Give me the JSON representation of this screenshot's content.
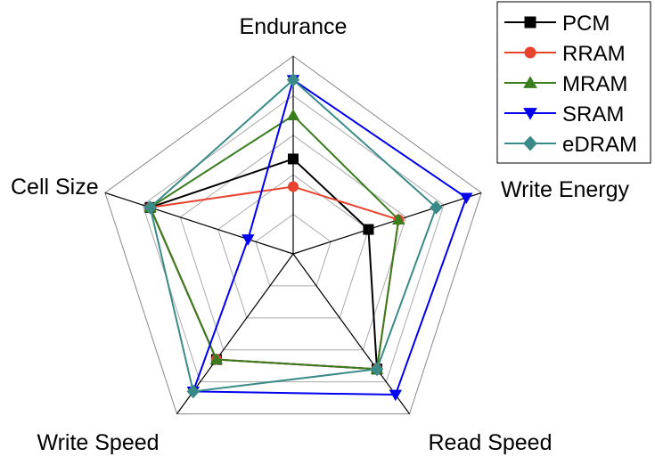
{
  "chart_data": {
    "type": "radar",
    "axes": [
      "Endurance",
      "Write Energy",
      "Read Speed",
      "Write Speed",
      "Cell Size"
    ],
    "levels": 5,
    "rmax": 5,
    "legend_position": "top-right",
    "series": [
      {
        "name": "PCM",
        "color": "#000000",
        "marker": "square",
        "values": [
          2.4,
          2.0,
          3.6,
          3.3,
          3.8
        ]
      },
      {
        "name": "RRAM",
        "color": "#e8432f",
        "marker": "circle",
        "values": [
          1.7,
          2.8,
          3.6,
          3.3,
          3.8
        ]
      },
      {
        "name": "MRAM",
        "color": "#3a7d1f",
        "marker": "triangle-up",
        "values": [
          3.5,
          2.8,
          3.6,
          3.3,
          3.8
        ]
      },
      {
        "name": "SRAM",
        "color": "#0000ee",
        "marker": "triangle-down",
        "values": [
          4.4,
          4.6,
          4.4,
          4.3,
          1.2
        ]
      },
      {
        "name": "eDRAM",
        "color": "#3a8a88",
        "marker": "diamond",
        "values": [
          4.4,
          3.8,
          3.6,
          4.3,
          3.8
        ]
      }
    ]
  }
}
